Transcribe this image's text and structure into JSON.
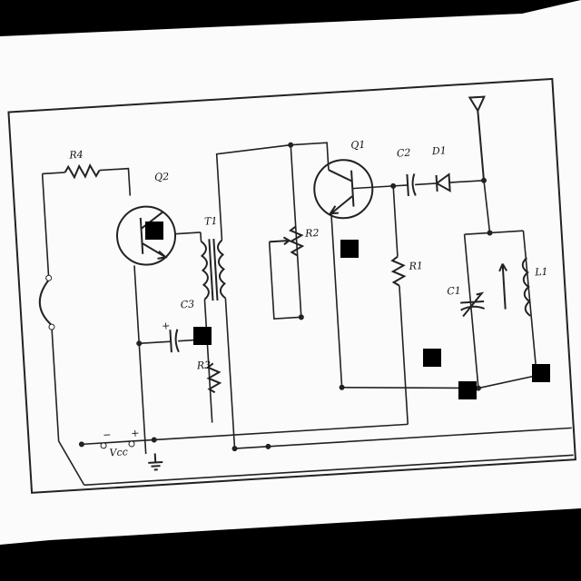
{
  "diagram": {
    "title": "",
    "labels": {
      "R4": "R4",
      "Q2": "Q2",
      "T1": "T1",
      "Q1": "Q1",
      "R2": "R2",
      "C2": "C2",
      "D1": "D1",
      "C3": "C3",
      "R3": "R3",
      "R1": "R1",
      "C1": "C1",
      "L1": "L1",
      "vcc": "Vcc",
      "plus": "+",
      "minus": "−",
      "c3_plus": "+"
    }
  }
}
